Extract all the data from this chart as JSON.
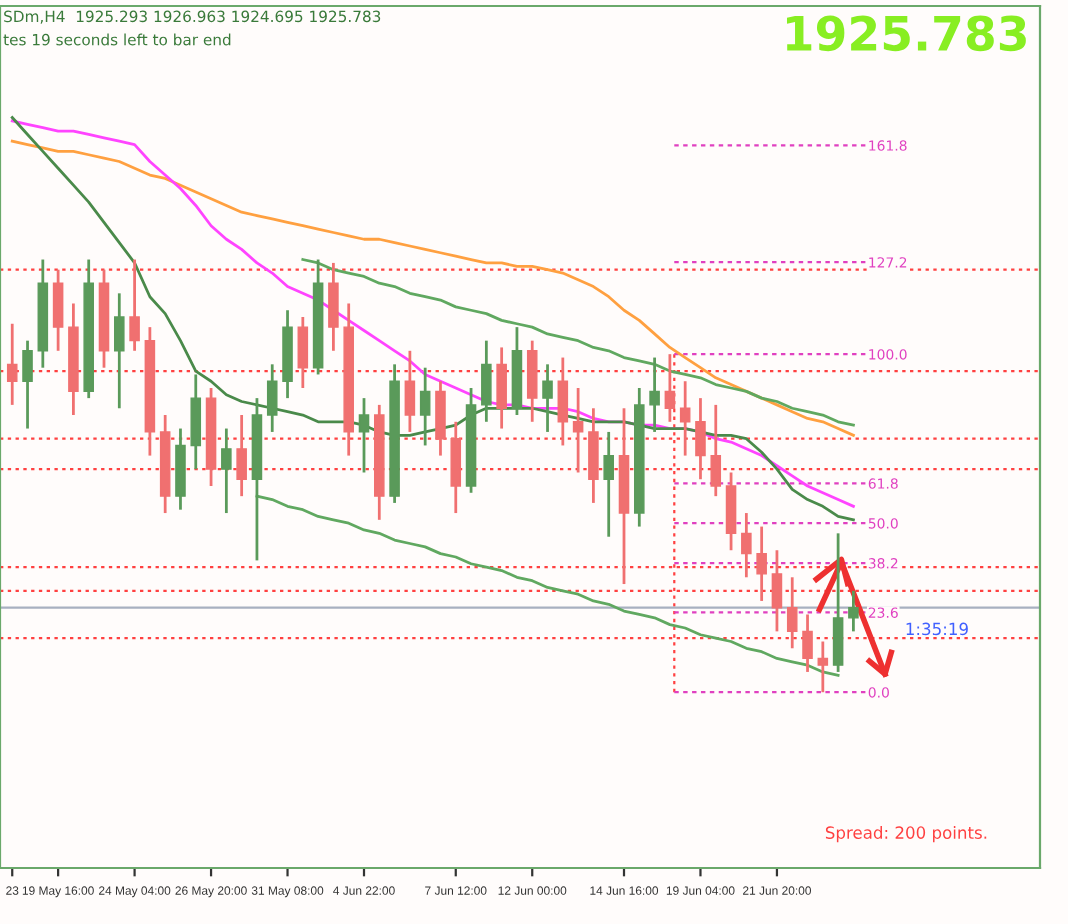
{
  "chart_data": {
    "type": "candlestick",
    "title": "SDm,H4  1925.293 1926.963 1924.695 1925.783",
    "subtitle": "tes 19 seconds left to bar end",
    "legend": false,
    "grid": false,
    "ylim": [
      -52,
      203
    ],
    "yticks": [
      {
        "value": 0,
        "label": "0.0"
      },
      23.6,
      38.2,
      {
        "value": 50,
        "label": "50.0"
      },
      61.8,
      {
        "value": 100,
        "label": "100.0"
      },
      127.2,
      161.8
    ],
    "categories": [
      "23",
      null,
      null,
      "19 May 16:00",
      null,
      null,
      null,
      null,
      "24 May 04:00",
      null,
      null,
      null,
      null,
      "26 May 20:00",
      null,
      null,
      null,
      null,
      "31 May 08:00",
      null,
      null,
      null,
      null,
      "4 Jun 22:00",
      null,
      null,
      null,
      null,
      null,
      "7 Jun 12:00",
      null,
      null,
      null,
      null,
      "12 Jun 00:00",
      null,
      null,
      null,
      null,
      null,
      "14 Jun 16:00",
      null,
      null,
      null,
      null,
      "19 Jun 04:00",
      null,
      null,
      null,
      null,
      "21 Jun 20:00",
      null,
      null,
      null,
      null,
      null
    ],
    "ohlc": [
      [
        97,
        109,
        85,
        92
      ],
      [
        92,
        104,
        78,
        101
      ],
      [
        101,
        128,
        96,
        121
      ],
      [
        121,
        125,
        101,
        108
      ],
      [
        108,
        115,
        82,
        89
      ],
      [
        89,
        128,
        87,
        121
      ],
      [
        121,
        125,
        96,
        101
      ],
      [
        101,
        118,
        84,
        111
      ],
      [
        111,
        128,
        101,
        104
      ],
      [
        104,
        108,
        70,
        77
      ],
      [
        77,
        82,
        53,
        58
      ],
      [
        58,
        78,
        54,
        73
      ],
      [
        73,
        94,
        66,
        87
      ],
      [
        87,
        90,
        61,
        66
      ],
      [
        66,
        78,
        53,
        72
      ],
      [
        72,
        82,
        58,
        63
      ],
      [
        63,
        87,
        39,
        82
      ],
      [
        82,
        97,
        77,
        92
      ],
      [
        92,
        113,
        87,
        108
      ],
      [
        108,
        111,
        90,
        96
      ],
      [
        96,
        128,
        94,
        121
      ],
      [
        121,
        127,
        101,
        108
      ],
      [
        108,
        115,
        70,
        77
      ],
      [
        77,
        87,
        65,
        82
      ],
      [
        82,
        85,
        51,
        58
      ],
      [
        58,
        97,
        56,
        92
      ],
      [
        92,
        101,
        77,
        82
      ],
      [
        82,
        96,
        73,
        89
      ],
      [
        89,
        92,
        70,
        75
      ],
      [
        75,
        80,
        53,
        61
      ],
      [
        61,
        90,
        59,
        85
      ],
      [
        85,
        104,
        80,
        97
      ],
      [
        97,
        102,
        78,
        84
      ],
      [
        84,
        108,
        82,
        101
      ],
      [
        101,
        104,
        80,
        87
      ],
      [
        87,
        97,
        77,
        92
      ],
      [
        92,
        99,
        73,
        80
      ],
      [
        80,
        90,
        65,
        77
      ],
      [
        77,
        84,
        56,
        63
      ],
      [
        63,
        77,
        46,
        70
      ],
      [
        70,
        84,
        32,
        53
      ],
      [
        53,
        90,
        49,
        85
      ],
      [
        85,
        99,
        77,
        89
      ],
      [
        89,
        100,
        80,
        84
      ],
      [
        84,
        92,
        70,
        80
      ],
      [
        80,
        87,
        63,
        70
      ],
      [
        70,
        85,
        58,
        61
      ],
      [
        61,
        65,
        42,
        47
      ],
      [
        47,
        53,
        34,
        41
      ],
      [
        41,
        49,
        27,
        35
      ],
      [
        35,
        42,
        18,
        25
      ],
      [
        25,
        34,
        13,
        18
      ],
      [
        18,
        23,
        6,
        10
      ],
      [
        10,
        15,
        0,
        8
      ],
      [
        8,
        47,
        6,
        22
      ],
      [
        22,
        30,
        18,
        25
      ]
    ],
    "colors": [
      "#f07070",
      "#5a9a5a",
      "#5a9a5a",
      "#f07070",
      "#f07070",
      "#5a9a5a",
      "#f07070",
      "#5a9a5a",
      "#f07070",
      "#f07070",
      "#f07070",
      "#5a9a5a",
      "#5a9a5a",
      "#f07070",
      "#5a9a5a",
      "#f07070",
      "#5a9a5a",
      "#5a9a5a",
      "#5a9a5a",
      "#f07070",
      "#5a9a5a",
      "#f07070",
      "#f07070",
      "#5a9a5a",
      "#f07070",
      "#5a9a5a",
      "#f07070",
      "#5a9a5a",
      "#f07070",
      "#f07070",
      "#5a9a5a",
      "#5a9a5a",
      "#f07070",
      "#5a9a5a",
      "#f07070",
      "#5a9a5a",
      "#f07070",
      "#f07070",
      "#f07070",
      "#5a9a5a",
      "#f07070",
      "#5a9a5a",
      "#5a9a5a",
      "#f07070",
      "#f07070",
      "#f07070",
      "#f07070",
      "#f07070",
      "#f07070",
      "#f07070",
      "#f07070",
      "#f07070",
      "#f07070",
      "#f07070",
      "#5a9a5a",
      "#5a9a5a"
    ],
    "series": [
      {
        "type": "line",
        "color": "#ffa040",
        "values": [
          163,
          162,
          161,
          160,
          160,
          159,
          158,
          157,
          155,
          153,
          152,
          150,
          148,
          146,
          144,
          142,
          141,
          140,
          139,
          138,
          137,
          136,
          135,
          134,
          134,
          133,
          132,
          131,
          130,
          129,
          128,
          127,
          127,
          126,
          126,
          125,
          124,
          122,
          120,
          117,
          113,
          110,
          106,
          102,
          99,
          96,
          93,
          91,
          89,
          87,
          85,
          83,
          81,
          80,
          78,
          76
        ]
      },
      {
        "type": "line",
        "color": "#ff44ff",
        "values": [
          169,
          168,
          167,
          166,
          166,
          165,
          164,
          163,
          162,
          157,
          153,
          149,
          144,
          138,
          134,
          131,
          127,
          124,
          120,
          118,
          116,
          113,
          110,
          107,
          104,
          101,
          98,
          94,
          92,
          90,
          88,
          86,
          85,
          85,
          84,
          84,
          84,
          83,
          81,
          80,
          80,
          79,
          79,
          78,
          78,
          77,
          75,
          74,
          72,
          70,
          67,
          64,
          61,
          59,
          57,
          55
        ]
      },
      {
        "type": "line",
        "color": "#4a8a4a",
        "values": [
          170,
          165,
          160,
          155,
          150,
          145,
          139,
          133,
          127,
          117,
          112,
          104,
          95,
          92,
          88,
          86,
          85,
          84,
          83,
          82,
          80,
          80,
          80,
          79,
          77,
          76,
          76,
          77,
          78,
          79,
          82,
          84,
          84,
          84,
          84,
          83,
          82,
          81,
          80,
          80,
          80,
          79,
          78,
          78,
          78,
          77,
          76,
          76,
          75,
          71,
          66,
          60,
          57,
          55,
          52,
          51
        ]
      },
      {
        "type": "line",
        "color": "#60a860",
        "values": [
          null,
          null,
          null,
          null,
          null,
          null,
          null,
          null,
          null,
          null,
          null,
          null,
          null,
          null,
          null,
          null,
          null,
          null,
          null,
          128,
          127,
          125,
          124,
          123,
          121,
          120,
          118,
          117,
          116,
          114,
          113,
          112,
          110,
          109,
          108,
          106,
          105,
          104,
          102,
          101,
          99,
          98,
          97,
          95,
          94,
          93,
          91,
          90,
          89,
          87,
          86,
          84,
          83,
          82,
          80,
          79
        ]
      },
      {
        "type": "line",
        "color": "#60a860",
        "values": [
          null,
          null,
          null,
          null,
          null,
          null,
          null,
          null,
          null,
          null,
          null,
          null,
          null,
          null,
          null,
          null,
          58,
          57,
          55,
          54,
          52,
          51,
          50,
          48,
          47,
          45,
          44,
          43,
          41,
          40,
          38,
          37,
          36,
          34,
          33,
          31,
          30,
          29,
          27,
          26,
          24,
          23,
          22,
          20,
          19,
          17,
          16,
          15,
          13,
          12,
          10,
          9,
          8,
          6,
          5,
          null
        ]
      }
    ],
    "ref_lines": [
      {
        "axis": "y",
        "value": 125,
        "color": "#ff4040",
        "line_style": "dotted"
      },
      {
        "axis": "y",
        "value": 95,
        "color": "#ff4040",
        "line_style": "dotted"
      },
      {
        "axis": "y",
        "value": 75,
        "color": "#ff4040",
        "line_style": "dotted"
      },
      {
        "axis": "y",
        "value": 66,
        "color": "#ff4040",
        "line_style": "dotted"
      },
      {
        "axis": "y",
        "value": 37,
        "color": "#ff4040",
        "line_style": "dotted"
      },
      {
        "axis": "y",
        "value": 30,
        "color": "#ff4040",
        "line_style": "dotted"
      },
      {
        "axis": "y",
        "value": 16,
        "color": "#ff4040",
        "line_style": "dotted"
      },
      {
        "axis": "y",
        "value": 25,
        "color": "#a8b0c0",
        "line_style": "solid"
      },
      {
        "axis": "y",
        "value": 161.8,
        "color": "#e040c0",
        "line_style": "dashed"
      },
      {
        "axis": "y",
        "value": 127.2,
        "color": "#e040c0",
        "line_style": "dashed"
      },
      {
        "axis": "y",
        "value": 100,
        "color": "#e040c0",
        "line_style": "dashed"
      },
      {
        "axis": "y",
        "value": 61.8,
        "color": "#e040c0",
        "line_style": "dashed"
      },
      {
        "axis": "y",
        "value": 50,
        "color": "#e040c0",
        "line_style": "dashed"
      },
      {
        "axis": "y",
        "value": 38.2,
        "color": "#e040c0",
        "line_style": "dashed"
      },
      {
        "axis": "y",
        "value": 23.6,
        "color": "#e040c0",
        "line_style": "dashed"
      },
      {
        "axis": "y",
        "value": 0,
        "color": "#e040c0",
        "line_style": "dashed"
      }
    ],
    "annotations": [
      "1925.783",
      "1:35:19",
      "Spread: 200 points."
    ]
  }
}
